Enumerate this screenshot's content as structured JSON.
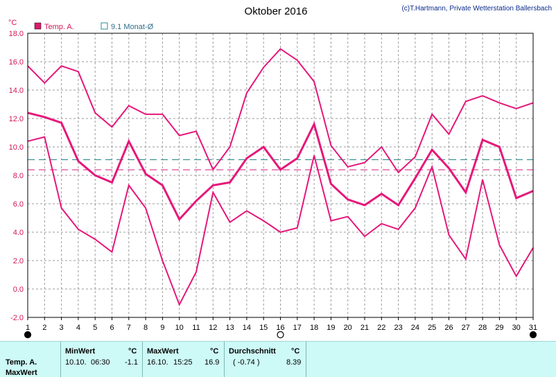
{
  "header": {
    "title": "Oktober 2016",
    "credit": "(c)T.Hartmann, Private Wetterstation Ballersbach",
    "unit": "°C"
  },
  "legend": {
    "series_label": "Temp. A.",
    "avg_label": "9.1 Monat-Ø"
  },
  "colors": {
    "series": "#e6177a",
    "mean_line": "#e0439a",
    "monthly_avg": "#2e8b8b",
    "axis_labels": "#d4145a"
  },
  "chart_data": {
    "type": "line",
    "title": "Oktober 2016",
    "ylabel": "°C",
    "x": [
      1,
      2,
      3,
      4,
      5,
      6,
      7,
      8,
      9,
      10,
      11,
      12,
      13,
      14,
      15,
      16,
      17,
      18,
      19,
      20,
      21,
      22,
      23,
      24,
      25,
      26,
      27,
      28,
      29,
      30,
      31
    ],
    "xlim": [
      1,
      31
    ],
    "ylim": [
      -2,
      18
    ],
    "yticks": [
      "-2.0",
      "0.0",
      "2.0",
      "4.0",
      "6.0",
      "8.0",
      "10.0",
      "12.0",
      "14.0",
      "16.0",
      "18.0"
    ],
    "grid": true,
    "series": [
      {
        "values": [
          15.7,
          14.5,
          15.7,
          15.3,
          12.4,
          11.4,
          12.9,
          12.3,
          12.3,
          10.8,
          11.1,
          8.4,
          10.0,
          13.8,
          15.6,
          16.9,
          16.1,
          14.6,
          10.1,
          8.6,
          8.9,
          10.0,
          8.2,
          9.3,
          12.3,
          10.9,
          13.2,
          13.6,
          13.1,
          12.7,
          13.1
        ]
      },
      {
        "values": [
          12.4,
          12.1,
          11.7,
          9.0,
          8.0,
          7.5,
          10.4,
          8.1,
          7.3,
          4.9,
          6.2,
          7.3,
          7.5,
          9.2,
          10.0,
          8.4,
          9.2,
          11.6,
          7.4,
          6.3,
          5.9,
          6.7,
          5.9,
          7.8,
          9.8,
          8.5,
          6.8,
          10.5,
          10.0,
          6.4,
          6.9
        ]
      },
      {
        "values": [
          10.4,
          10.7,
          5.7,
          4.2,
          3.5,
          2.6,
          7.3,
          5.7,
          2.0,
          -1.1,
          1.2,
          6.8,
          4.7,
          5.5,
          4.8,
          4.0,
          4.3,
          9.4,
          4.8,
          5.1,
          3.7,
          4.6,
          4.2,
          5.7,
          8.6,
          3.8,
          2.1,
          7.7,
          3.1,
          0.9,
          2.9
        ]
      }
    ],
    "reference_lines": [
      {
        "value": 9.1,
        "label": "9.1 Monat-Ø"
      },
      {
        "value": 8.39
      }
    ],
    "markers": [
      {
        "x": 1,
        "symbol": "full-moon-filled"
      },
      {
        "x": 16,
        "symbol": "full-moon-open"
      },
      {
        "x": 31,
        "symbol": "full-moon-filled"
      }
    ]
  },
  "stats": {
    "row_label_1": "Temp. A.",
    "row_label_2": "MaxWert",
    "min": {
      "label": "MinWert",
      "unit": "°C",
      "date": "10.10.",
      "time": "06:30",
      "value": "-1.1"
    },
    "max": {
      "label": "MaxWert",
      "unit": "°C",
      "date": "16.10.",
      "time": "15:25",
      "value": "16.9"
    },
    "avg": {
      "label": "Durchschnitt",
      "unit": "°C",
      "delta": "( -0.74 )",
      "value": "8.39"
    }
  }
}
